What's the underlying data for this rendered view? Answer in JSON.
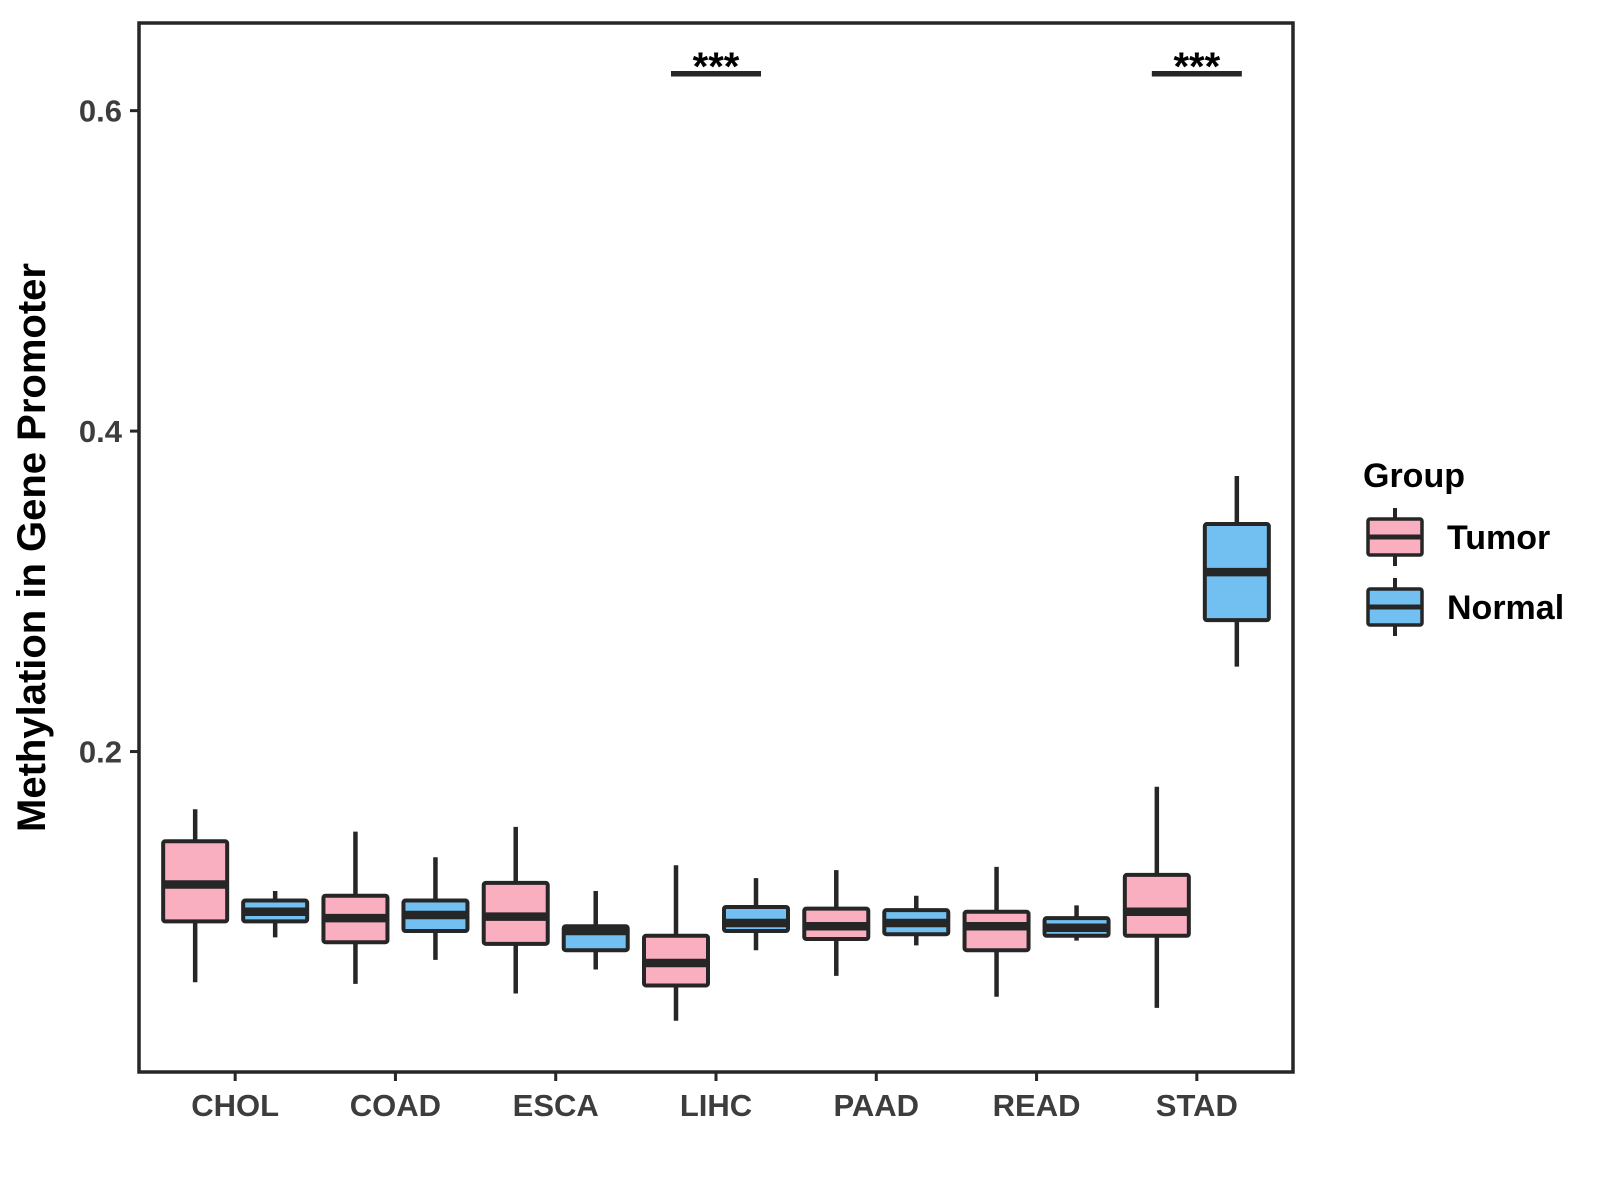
{
  "figure": {
    "background": "#FFFFFF",
    "ylabel": "Methylation in Gene Promoter",
    "legend": {
      "title": "Group",
      "entries": [
        {
          "label": "Tumor",
          "color": "#FAAFC1"
        },
        {
          "label": "Normal",
          "color": "#72BFF2"
        }
      ]
    }
  },
  "style": {
    "line_color": "#262626",
    "axis_text_color": "#3D3D3D",
    "title_text_color": "#000000",
    "tumor_fill": "#FAAFC1",
    "normal_fill": "#72BFF2"
  },
  "chart_data": {
    "type": "grouped_boxplot",
    "title": "",
    "xlabel": "",
    "ylabel": "Methylation in Gene Promoter",
    "categories": [
      "CHOL",
      "COAD",
      "ESCA",
      "LIHC",
      "PAAD",
      "READ",
      "STAD"
    ],
    "ylim": [
      0,
      0.6547
    ],
    "yticks": [
      0.2,
      0.4,
      0.6
    ],
    "grid": false,
    "legend_title": "Group",
    "legend_position": "right",
    "series": [
      {
        "name": "Tumor",
        "color": "#FAAFC1",
        "boxes": [
          {
            "category": "CHOL",
            "whisker_low": 0.056,
            "q1": 0.094,
            "median": 0.117,
            "q3": 0.144,
            "whisker_high": 0.164
          },
          {
            "category": "COAD",
            "whisker_low": 0.055,
            "q1": 0.081,
            "median": 0.096,
            "q3": 0.11,
            "whisker_high": 0.15
          },
          {
            "category": "ESCA",
            "whisker_low": 0.049,
            "q1": 0.08,
            "median": 0.097,
            "q3": 0.118,
            "whisker_high": 0.153
          },
          {
            "category": "LIHC",
            "whisker_low": 0.032,
            "q1": 0.054,
            "median": 0.068,
            "q3": 0.085,
            "whisker_high": 0.129
          },
          {
            "category": "PAAD",
            "whisker_low": 0.06,
            "q1": 0.083,
            "median": 0.091,
            "q3": 0.102,
            "whisker_high": 0.126
          },
          {
            "category": "READ",
            "whisker_low": 0.047,
            "q1": 0.076,
            "median": 0.091,
            "q3": 0.1,
            "whisker_high": 0.128
          },
          {
            "category": "STAD",
            "whisker_low": 0.04,
            "q1": 0.085,
            "median": 0.1,
            "q3": 0.123,
            "whisker_high": 0.178
          }
        ]
      },
      {
        "name": "Normal",
        "color": "#72BFF2",
        "boxes": [
          {
            "category": "CHOL",
            "whisker_low": 0.084,
            "q1": 0.094,
            "median": 0.1,
            "q3": 0.107,
            "whisker_high": 0.113
          },
          {
            "category": "COAD",
            "whisker_low": 0.07,
            "q1": 0.088,
            "median": 0.098,
            "q3": 0.107,
            "whisker_high": 0.134
          },
          {
            "category": "ESCA",
            "whisker_low": 0.064,
            "q1": 0.076,
            "median": 0.088,
            "q3": 0.091,
            "whisker_high": 0.113
          },
          {
            "category": "LIHC",
            "whisker_low": 0.076,
            "q1": 0.088,
            "median": 0.093,
            "q3": 0.103,
            "whisker_high": 0.121
          },
          {
            "category": "PAAD",
            "whisker_low": 0.079,
            "q1": 0.086,
            "median": 0.093,
            "q3": 0.101,
            "whisker_high": 0.11
          },
          {
            "category": "READ",
            "whisker_low": 0.082,
            "q1": 0.085,
            "median": 0.09,
            "q3": 0.096,
            "whisker_high": 0.104
          },
          {
            "category": "STAD",
            "whisker_low": 0.253,
            "q1": 0.282,
            "median": 0.312,
            "q3": 0.342,
            "whisker_high": 0.372
          }
        ]
      }
    ],
    "significance": [
      {
        "category": "LIHC",
        "label": "***",
        "y": 0.623
      },
      {
        "category": "STAD",
        "label": "***",
        "y": 0.623
      }
    ]
  }
}
